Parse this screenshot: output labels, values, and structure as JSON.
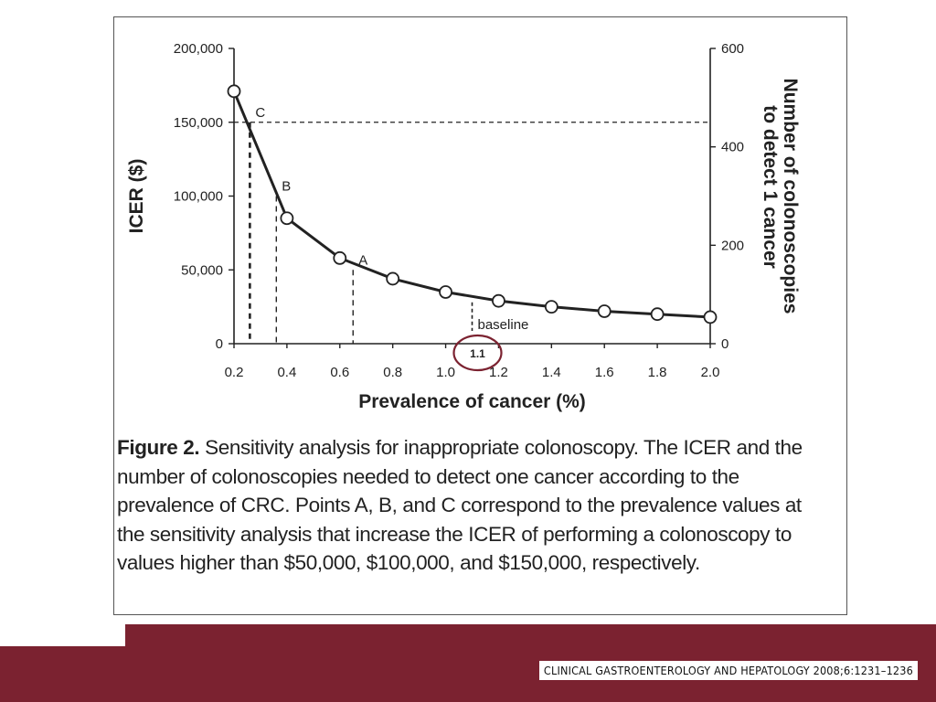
{
  "figure": {
    "label": "Figure 2.",
    "caption": "Sensitivity analysis for inappropriate colonoscopy. The ICER and the number of colonoscopies needed to detect one cancer according to the prevalence of CRC. Points A, B, and C correspond to the prevalence values at the sensitivity analysis that increase the ICER of performing a colonoscopy to values higher than $50,000, $100,000, and $150,000, respectively."
  },
  "citation": "CLINICAL GASTROENTEROLOGY AND HEPATOLOGY 2008;6:1231–1236",
  "colors": {
    "band": "#7b2230",
    "highlight_circle": "#7b2230",
    "ink": "#222222"
  },
  "chart_data": {
    "type": "line",
    "title": "",
    "xlabel": "Prevalence of cancer (%)",
    "ylabel": "ICER ($)",
    "y2label_line1": "Number of colonoscopies",
    "y2label_line2": "to detect 1 cancer",
    "xlim": [
      0.2,
      2.0
    ],
    "ylim": [
      0,
      200000
    ],
    "y2lim": [
      0,
      600
    ],
    "x_ticks": [
      "0.2",
      "0.4",
      "0.6",
      "0.8",
      "1.0",
      "1.2",
      "1.4",
      "1.6",
      "1.8",
      "2.0"
    ],
    "y_ticks": [
      "0",
      "50,000",
      "100,000",
      "150,000",
      "200,000"
    ],
    "y2_ticks": [
      "0",
      "200",
      "400",
      "600"
    ],
    "series": [
      {
        "x": [
          0.2,
          0.4,
          0.6,
          0.8,
          1.0,
          1.2,
          1.4,
          1.6,
          1.8,
          2.0
        ],
        "y": [
          171000,
          85000,
          58000,
          44000,
          35000,
          29000,
          25000,
          22000,
          20000,
          18000
        ]
      }
    ],
    "threshold_line": {
      "y": 150000
    },
    "markers": [
      {
        "label": "A",
        "x": 0.65,
        "y": 50000
      },
      {
        "label": "B",
        "x": 0.36,
        "y": 100000
      },
      {
        "label": "C",
        "x": 0.26,
        "y": 150000
      }
    ],
    "baseline": {
      "label": "baseline",
      "x": 1.1,
      "y": 28000
    },
    "highlight": {
      "label": "1.1",
      "x": 1.1
    }
  }
}
